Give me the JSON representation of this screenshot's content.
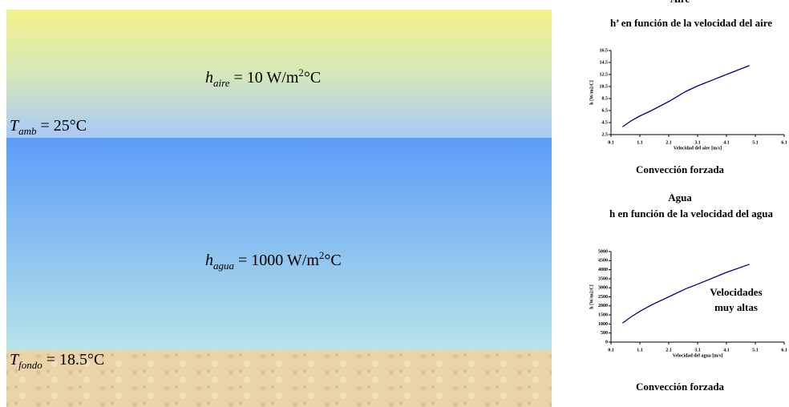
{
  "diagram": {
    "labels": [
      {
        "main": "h",
        "sub": "aire",
        "rest": " = 10 W/m",
        "sup": "2",
        "end": "°C"
      },
      {
        "main": "T",
        "sub": "amb",
        "rest": " = 25°C"
      },
      {
        "main": "h",
        "sub": "agua",
        "rest": " = 1000 W/m",
        "sup": "2",
        "end": "°C"
      },
      {
        "main": "T",
        "sub": "fondo",
        "rest": " = 18.5°C"
      }
    ]
  },
  "chart_data": [
    {
      "type": "line",
      "heading": "Aire",
      "subtitle": "h’ en función de la velocidad del aire",
      "caption": "Convección forzada",
      "x_label": "Velocidad del aire [m/s]",
      "y_label": "h [W/m2/C]",
      "x": [
        0.5,
        0.8,
        1.1,
        1.5,
        2.1,
        2.7,
        3.1,
        4.1,
        4.9
      ],
      "values": [
        3.8,
        4.8,
        5.6,
        6.5,
        8.0,
        9.7,
        10.6,
        12.5,
        14.0
      ],
      "color": "#000080",
      "xlim": [
        0.1,
        6.1
      ],
      "xticks": [
        0.1,
        1.1,
        2.1,
        3.1,
        4.1,
        5.1,
        6.1
      ],
      "ylim": [
        2.5,
        16.5
      ],
      "yticks": [
        2.5,
        4.5,
        6.5,
        8.5,
        10.5,
        12.5,
        14.5,
        16.5
      ]
    },
    {
      "type": "line",
      "heading": "Agua",
      "subtitle": "h en función de la velocidad del agua",
      "caption": "Convección forzada",
      "x_label": "Velocidad del agua [m/s]",
      "y_label": "h [W/m2/C]",
      "annotation": [
        "Velocidades",
        "muy altas"
      ],
      "x": [
        0.5,
        0.8,
        1.1,
        1.5,
        2.1,
        2.7,
        3.1,
        4.1,
        4.9
      ],
      "values": [
        1050,
        1400,
        1700,
        2050,
        2500,
        2950,
        3200,
        3850,
        4300
      ],
      "color": "#000080",
      "xlim": [
        0.1,
        6.1
      ],
      "xticks": [
        0.1,
        1.1,
        2.1,
        3.1,
        4.1,
        5.1,
        6.1
      ],
      "ylim": [
        0,
        5000
      ],
      "yticks": [
        0,
        500,
        1000,
        1500,
        2000,
        2500,
        3000,
        3500,
        4000,
        4500,
        5000
      ]
    }
  ]
}
